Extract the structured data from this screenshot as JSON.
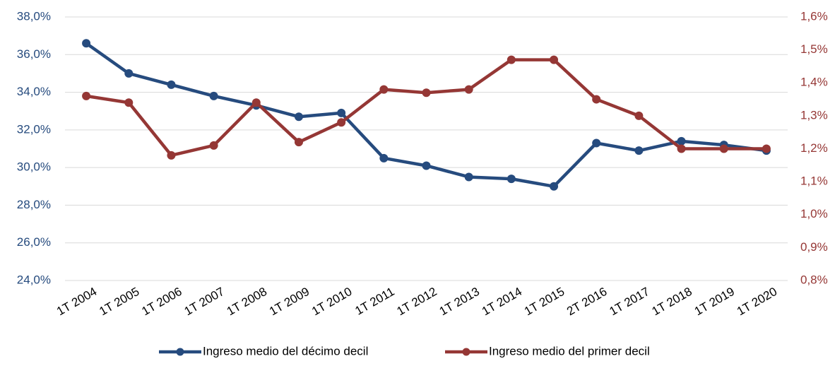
{
  "chart_data": {
    "type": "line",
    "categories": [
      "1T 2004",
      "1T 2005",
      "1T 2006",
      "1T 2007",
      "1T 2008",
      "1T 2009",
      "1T 2010",
      "1T 2011",
      "1T 2012",
      "1T 2013",
      "1T 2014",
      "1T 2015",
      "2T 2016",
      "1T 2017",
      "1T 2018",
      "1T 2019",
      "1T 2020"
    ],
    "series": [
      {
        "name": "Ingreso medio del décimo decil",
        "color": "#264b7e",
        "values": [
          36.6,
          35.0,
          34.4,
          33.8,
          33.3,
          32.7,
          32.9,
          30.5,
          30.1,
          29.5,
          29.4,
          29.0,
          31.3,
          30.9,
          31.4,
          31.2,
          30.9
        ]
      },
      {
        "name": "Ingreso medio del primer decil",
        "color": "#953735",
        "axis": "y2",
        "values": [
          1.36,
          1.34,
          1.18,
          1.21,
          1.34,
          1.22,
          1.28,
          1.38,
          1.37,
          1.38,
          1.47,
          1.47,
          1.35,
          1.3,
          1.2,
          1.2,
          1.2
        ]
      }
    ],
    "ylim": [
      24,
      38
    ],
    "yticks": [
      {
        "value": 24,
        "label": "24,0%"
      },
      {
        "value": 26,
        "label": "26,0%"
      },
      {
        "value": 28,
        "label": "28,0%"
      },
      {
        "value": 30,
        "label": "30,0%"
      },
      {
        "value": 32,
        "label": "32,0%"
      },
      {
        "value": 34,
        "label": "34,0%"
      },
      {
        "value": 36,
        "label": "36,0%"
      },
      {
        "value": 38,
        "label": "38,0%"
      }
    ],
    "y2lim": [
      0.8,
      1.6
    ],
    "y2ticks": [
      {
        "value": 0.8,
        "label": "0,8%"
      },
      {
        "value": 0.9,
        "label": "0,9%"
      },
      {
        "value": 1.0,
        "label": "1,0%"
      },
      {
        "value": 1.1,
        "label": "1,1%"
      },
      {
        "value": 1.2,
        "label": "1,2%"
      },
      {
        "value": 1.3,
        "label": "1,3%"
      },
      {
        "value": 1.4,
        "label": "1,4%"
      },
      {
        "value": 1.5,
        "label": "1,5%"
      },
      {
        "value": 1.6,
        "label": "1,6%"
      }
    ],
    "grid": true,
    "legend": "bottom"
  }
}
